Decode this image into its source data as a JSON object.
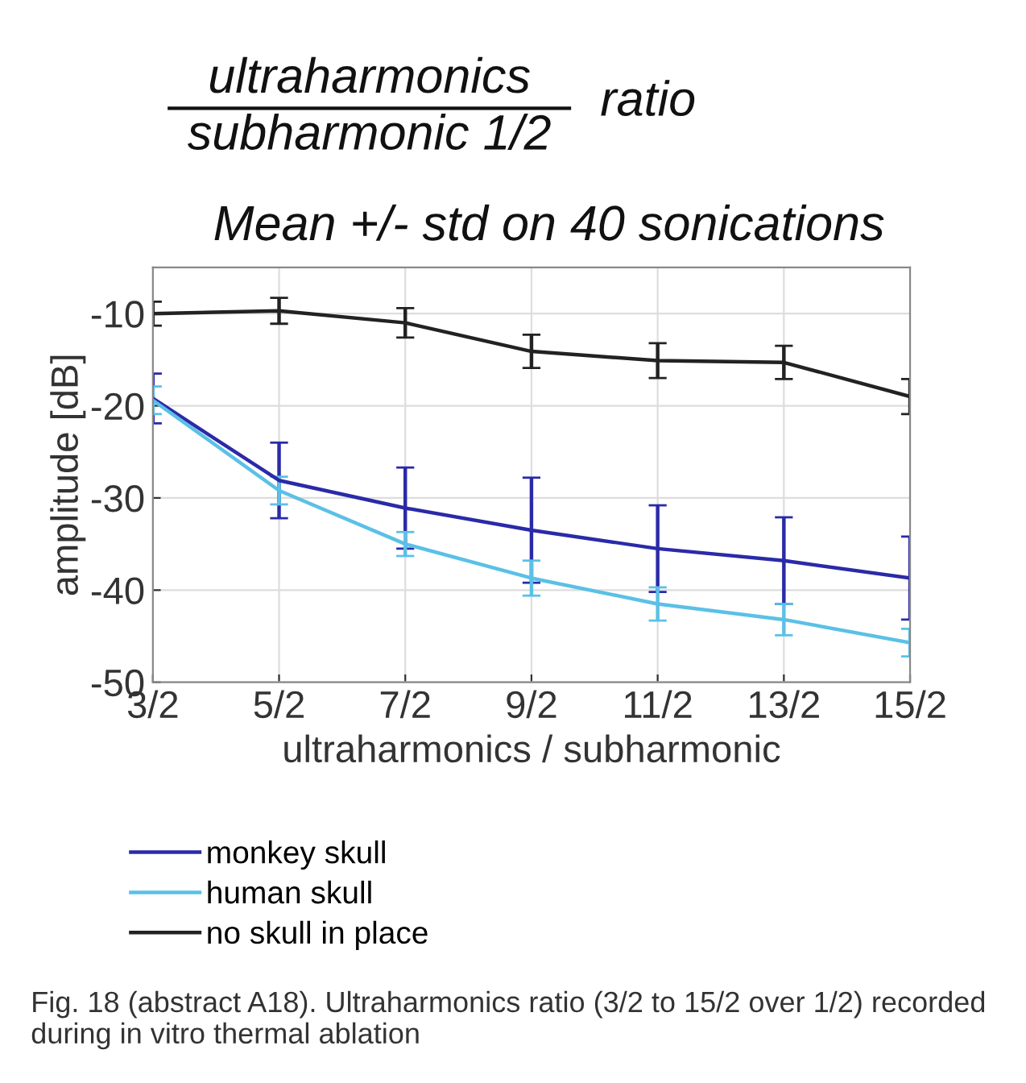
{
  "chart_data": {
    "type": "line",
    "title": "ultraharmonics\nsubharmonic 1/2",
    "subtitle": "Mean +/- std on 40 sonications",
    "xlabel": "ultraharmonics / subharmonic",
    "ylabel": "amplitude [dB]",
    "annotations": [
      "ratio",
      "Fig. 18 (abstract A18). Ultraharmonics ratio (3/2 to 15/2 over 1/2) recorded during in vitro thermal ablation"
    ],
    "categories": [
      "3/2",
      "5/2",
      "7/2",
      "9/2",
      "11/2",
      "13/2",
      "15/2"
    ],
    "series": [
      {
        "name": "monkey skull",
        "color": "#2a2aa8",
        "values": [
          -19.2,
          -28.1,
          -31.1,
          -33.5,
          -35.5,
          -36.8,
          -38.7
        ],
        "errors": [
          2.7,
          4.1,
          4.4,
          5.7,
          4.7,
          4.7,
          4.5
        ]
      },
      {
        "name": "human skull",
        "color": "#5bc0e6",
        "values": [
          -19.4,
          -29.2,
          -35.0,
          -38.7,
          -41.5,
          -43.2,
          -45.7
        ],
        "errors": [
          1.5,
          1.5,
          1.3,
          1.9,
          1.8,
          1.7,
          1.5
        ]
      },
      {
        "name": "no skull in place",
        "color": "#222222",
        "values": [
          -10.0,
          -9.7,
          -11.0,
          -14.1,
          -15.1,
          -15.3,
          -19.0
        ],
        "errors": [
          1.3,
          1.4,
          1.6,
          1.8,
          1.9,
          1.8,
          1.9
        ]
      }
    ],
    "ylim": [
      -50,
      -5
    ],
    "yticks": [
      -50,
      -40,
      -30,
      -20,
      -10
    ],
    "grid": true,
    "legend": "bottom",
    "marker": "none",
    "line_style": "solid"
  }
}
